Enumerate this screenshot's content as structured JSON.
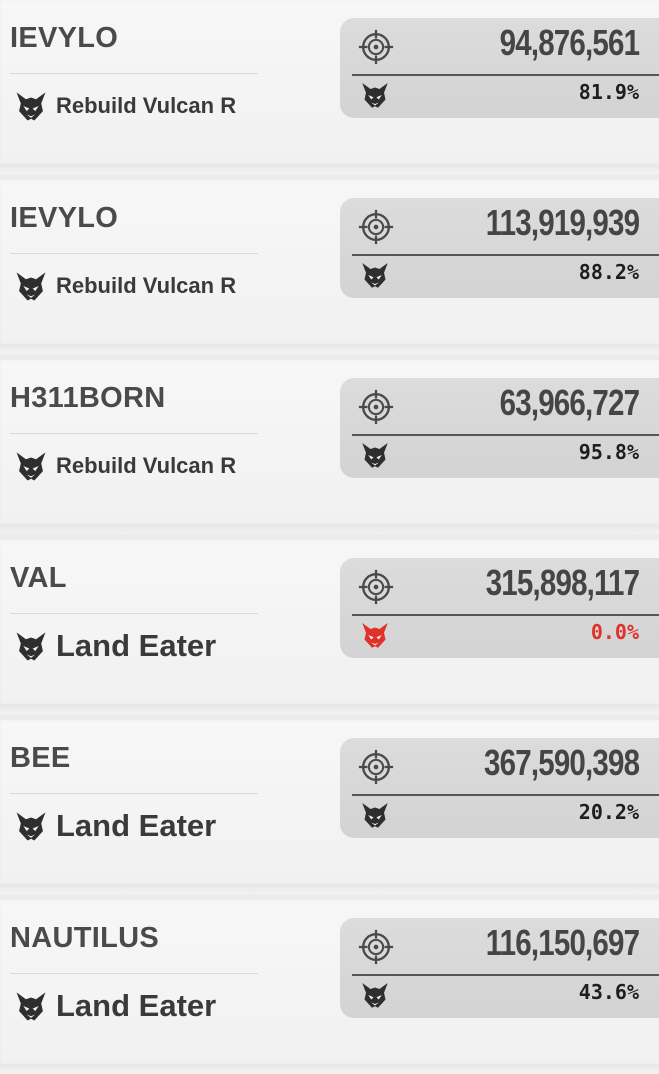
{
  "colors": {
    "text": "#4a4a4a",
    "panel": "#d6d6d6",
    "alert": "#e0312b"
  },
  "icons": {
    "target": "crosshair-target-icon",
    "boss": "demon-mask-icon"
  },
  "entries": [
    {
      "player": "IEVYLO",
      "boss": "Rebuild Vulcan R",
      "damage": "94,876,561",
      "percent": "81.9%",
      "alert": false
    },
    {
      "player": "IEVYLO",
      "boss": "Rebuild Vulcan R",
      "damage": "113,919,939",
      "percent": "88.2%",
      "alert": false
    },
    {
      "player": "H311BORN",
      "boss": "Rebuild Vulcan R",
      "damage": "63,966,727",
      "percent": "95.8%",
      "alert": false
    },
    {
      "player": "VAL",
      "boss": "Land Eater",
      "damage": "315,898,117",
      "percent": "0.0%",
      "alert": true
    },
    {
      "player": "BEE",
      "boss": "Land Eater",
      "damage": "367,590,398",
      "percent": "20.2%",
      "alert": false
    },
    {
      "player": "NAUTILUS",
      "boss": "Land Eater",
      "damage": "116,150,697",
      "percent": "43.6%",
      "alert": false
    }
  ]
}
